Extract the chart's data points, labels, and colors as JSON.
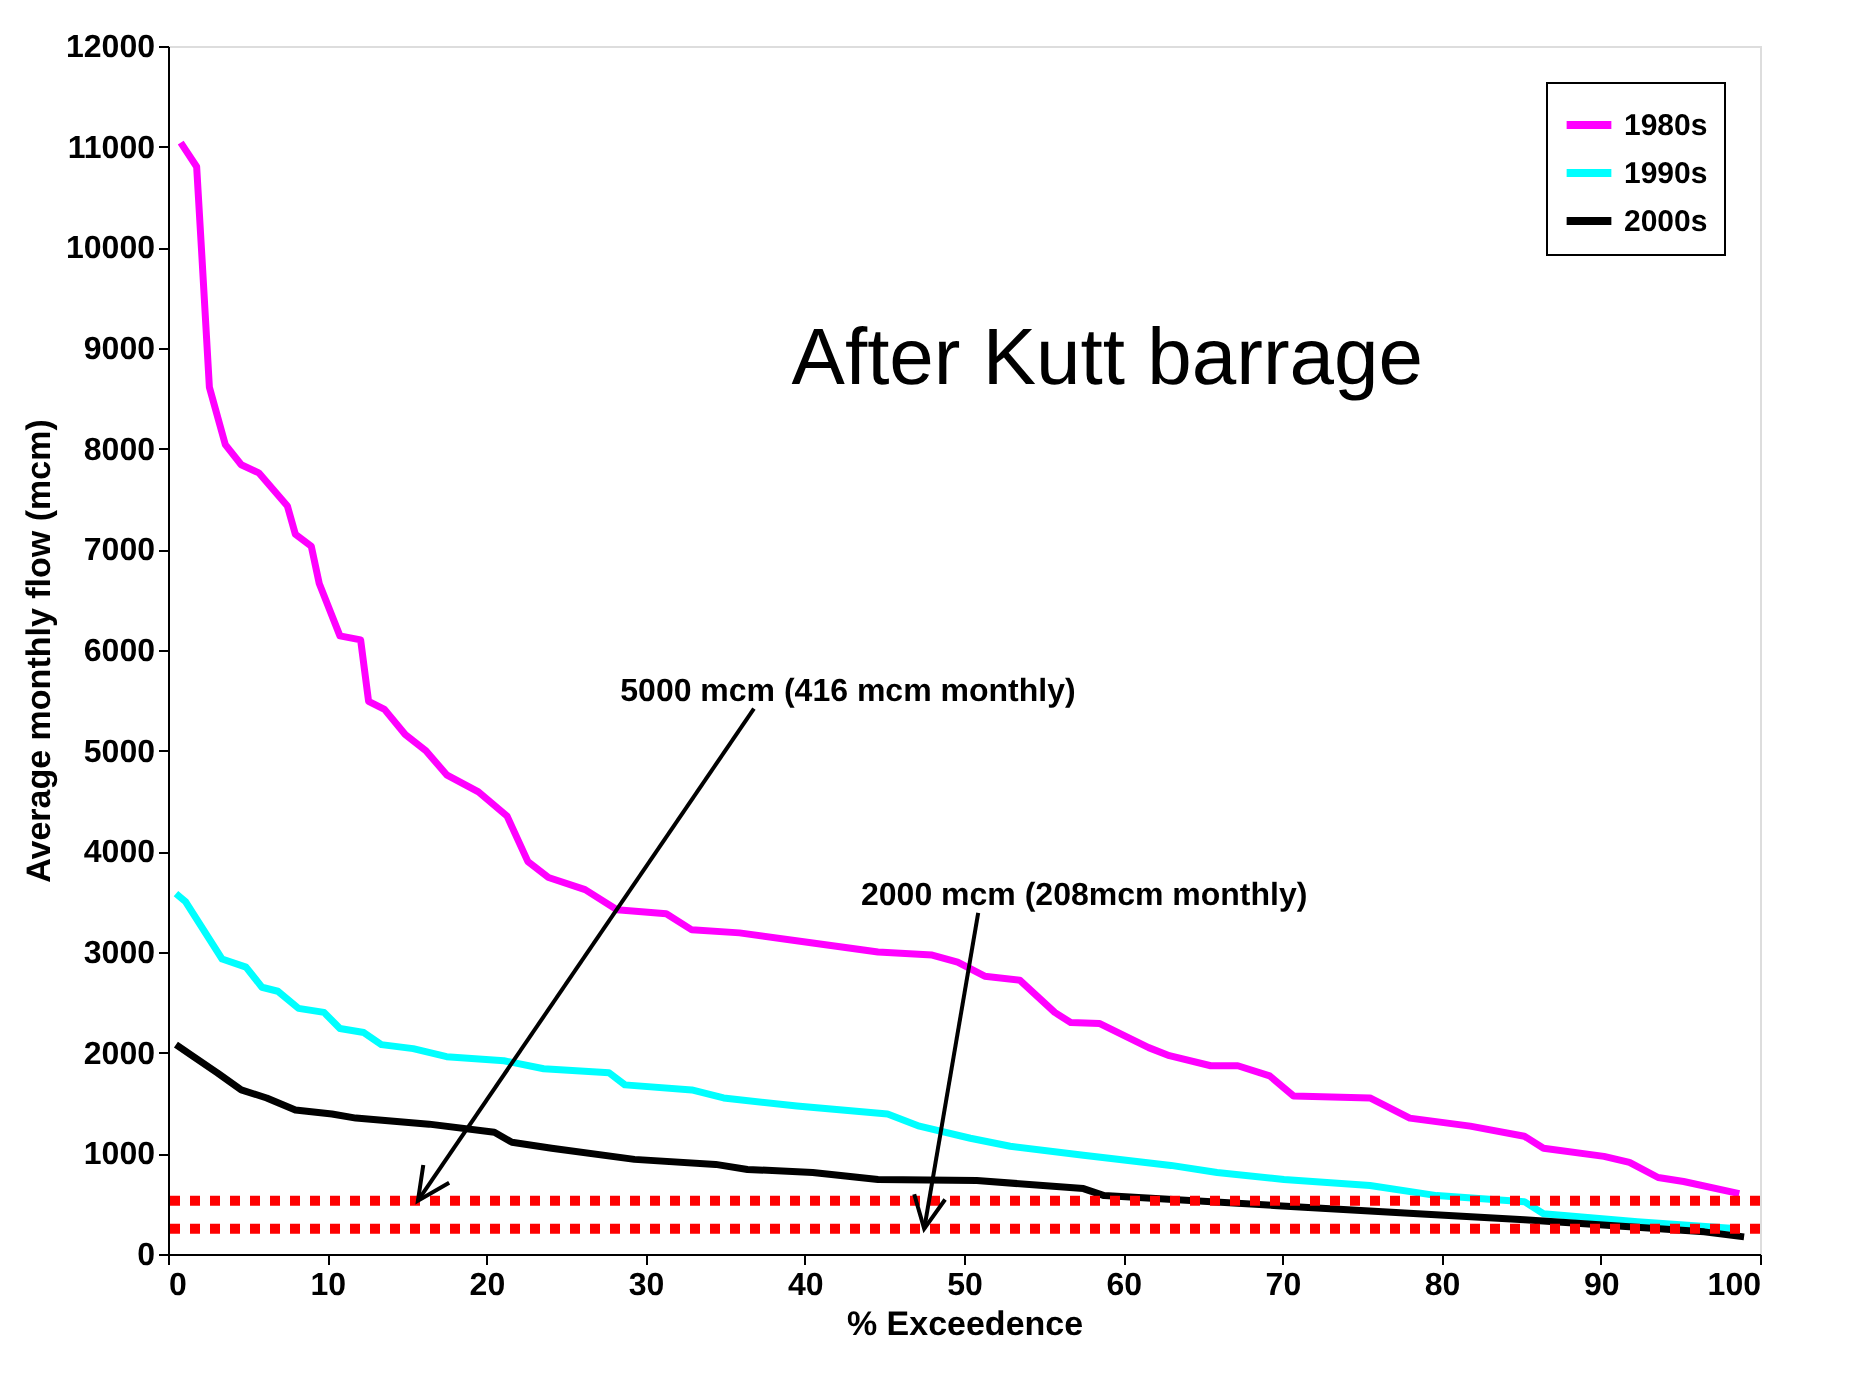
{
  "chart_data": {
    "type": "line",
    "xlabel": "% Exceedence",
    "ylabel": "Average monthly flow (mcm)",
    "xlim": [
      0,
      100
    ],
    "xticks": [
      0,
      10,
      20,
      30,
      40,
      50,
      60,
      70,
      80,
      90,
      100
    ],
    "ylim": [
      0,
      12000
    ],
    "yticks": [
      0,
      1000,
      2000,
      3000,
      4000,
      5000,
      6000,
      7000,
      8000,
      9000,
      10000,
      11000,
      12000
    ],
    "grid": false,
    "legend": "top right",
    "marker": "none",
    "line_style": "solid",
    "series": [
      {
        "name": "1980s",
        "color": "#ff00ff",
        "x": [
          0.8,
          1.8,
          2.1,
          2.6,
          3.6,
          4.6,
          5.7,
          7.5,
          8.0,
          9.0,
          9.5,
          10.8,
          12.1,
          12.6,
          13.6,
          14.9,
          16.2,
          17.5,
          19.5,
          21.3,
          22.6,
          23.9,
          26.2,
          28.2,
          31.3,
          32.9,
          35.9,
          40.5,
          44.6,
          48.0,
          49.6,
          51.3,
          53.5,
          55.7,
          56.7,
          58.5,
          61.6,
          62.9,
          65.5,
          67.2,
          69.2,
          70.7,
          75.5,
          78.0,
          81.8,
          85.2,
          86.4,
          90.2,
          91.8,
          93.6,
          95.2,
          98.7
        ],
        "values": [
          11040,
          10800,
          9990,
          8610,
          8040,
          7840,
          7760,
          7430,
          7150,
          7030,
          6660,
          6140,
          6100,
          5490,
          5410,
          5160,
          5000,
          4760,
          4590,
          4350,
          3900,
          3740,
          3620,
          3420,
          3380,
          3220,
          3190,
          3090,
          3000,
          2970,
          2900,
          2760,
          2720,
          2400,
          2300,
          2290,
          2050,
          1970,
          1870,
          1870,
          1770,
          1570,
          1550,
          1350,
          1270,
          1170,
          1050,
          970,
          910,
          760,
          720,
          600
        ]
      },
      {
        "name": "1990s",
        "color": "#00ffff",
        "x": [
          0.5,
          1.1,
          3.4,
          4.9,
          5.9,
          6.9,
          8.2,
          9.8,
          10.8,
          12.3,
          13.4,
          15.4,
          17.5,
          21.1,
          23.6,
          27.7,
          28.7,
          32.9,
          34.9,
          39.5,
          45.2,
          47.2,
          50.4,
          52.9,
          57.5,
          63.0,
          65.9,
          70.1,
          75.5,
          79.7,
          85.2,
          86.4,
          92.3,
          98.6
        ],
        "values": [
          3580,
          3500,
          2930,
          2850,
          2650,
          2610,
          2440,
          2400,
          2240,
          2200,
          2080,
          2040,
          1960,
          1920,
          1840,
          1800,
          1680,
          1630,
          1550,
          1470,
          1390,
          1270,
          1150,
          1070,
          980,
          880,
          810,
          740,
          680,
          580,
          520,
          400,
          320,
          250
        ]
      },
      {
        "name": "2000s",
        "color": "#000000",
        "x": [
          0.5,
          1.6,
          3.1,
          4.6,
          6.2,
          8.0,
          10.3,
          11.8,
          16.4,
          20.5,
          21.6,
          24.1,
          29.3,
          34.4,
          36.4,
          40.5,
          44.6,
          50.8,
          57.5,
          58.8,
          69.7,
          78.5,
          85.2,
          96.5,
          99.0
        ],
        "values": [
          2080,
          1960,
          1800,
          1630,
          1550,
          1430,
          1390,
          1350,
          1290,
          1210,
          1110,
          1050,
          940,
          890,
          840,
          810,
          740,
          730,
          650,
          580,
          480,
          400,
          340,
          220,
          170
        ]
      }
    ],
    "ref_lines": [
      {
        "axis": "y",
        "value": 530,
        "color": "#ff0000",
        "line_style": "dotted"
      },
      {
        "axis": "y",
        "value": 250,
        "color": "#ff0000",
        "line_style": "dotted"
      }
    ],
    "annotations": [
      {
        "text": "5000 mcm (416 mcm monthly)",
        "x": 15.7,
        "y": 530
      },
      {
        "text": "2000 mcm (208mcm monthly)",
        "x": 47.5,
        "y": 250
      },
      "After Kutt barrage"
    ]
  }
}
